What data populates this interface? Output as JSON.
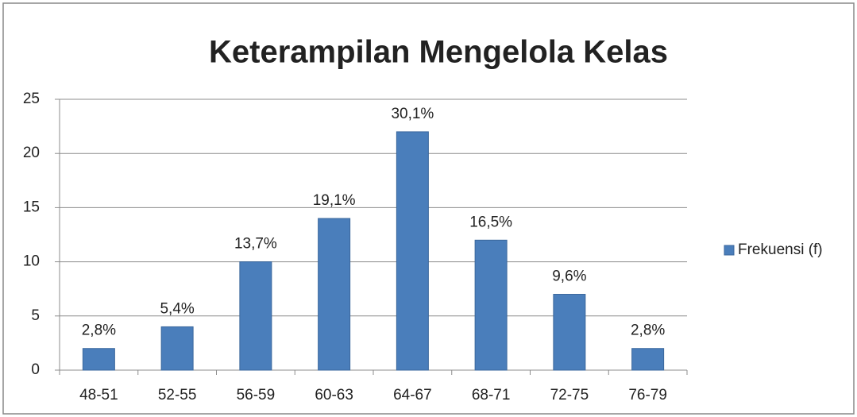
{
  "chart_data": {
    "type": "bar",
    "title": "Keterampilan Mengelola Kelas",
    "categories": [
      "48-51",
      "52-55",
      "56-59",
      "60-63",
      "64-67",
      "68-71",
      "72-75",
      "76-79"
    ],
    "series": [
      {
        "name": "Frekuensi (f)",
        "color": "#4a7ebb",
        "values": [
          2,
          4,
          10,
          14,
          22,
          12,
          7,
          2
        ]
      }
    ],
    "annotations": [
      "2,8%",
      "5,4%",
      "13,7%",
      "19,1%",
      "30,1%",
      "16,5%",
      "9,6%",
      "2,8%"
    ],
    "ylim": [
      0,
      25
    ],
    "yticks": [
      0,
      5,
      10,
      15,
      20,
      25
    ],
    "grid": true,
    "legend": "right"
  }
}
